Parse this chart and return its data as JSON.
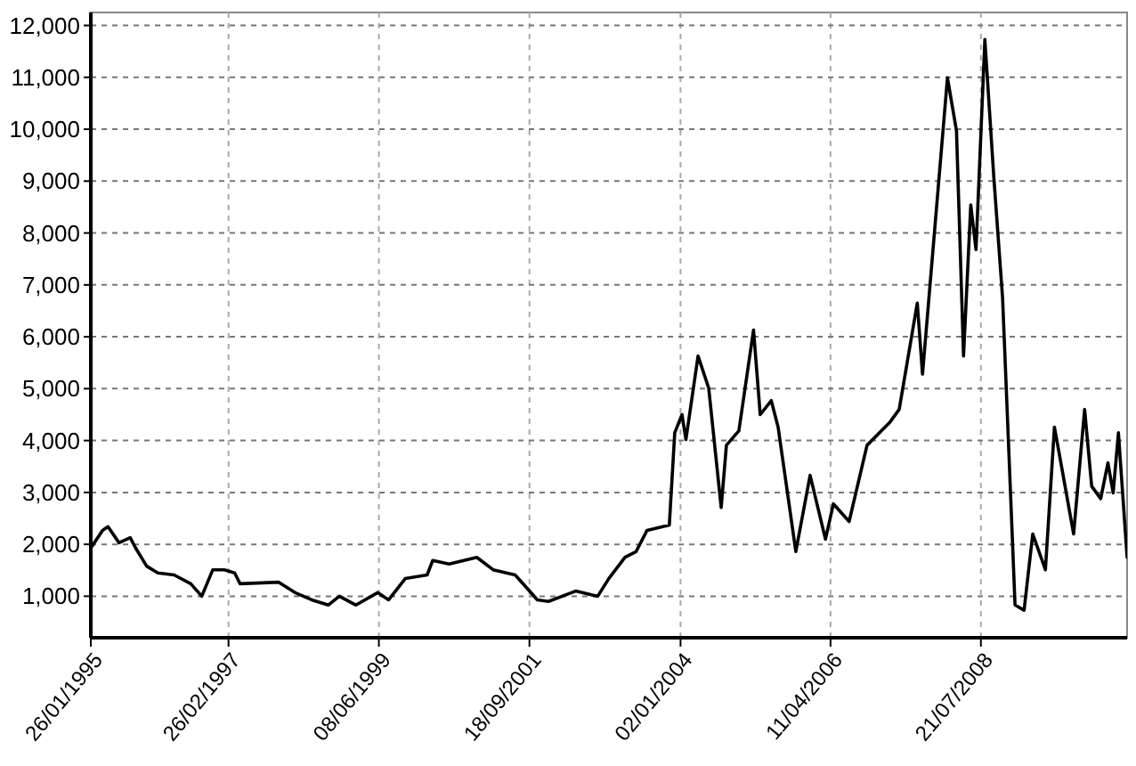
{
  "chart_data": {
    "type": "line",
    "grid": true,
    "marker": "none",
    "line_style": "solid",
    "xlim": [
      "1995-01-26",
      "2010-10-08"
    ],
    "xticks": [
      {
        "value": "1995-01-26",
        "label": "26/01/1995"
      },
      {
        "value": "1997-02-26",
        "label": "26/02/1997"
      },
      {
        "value": "1999-06-08",
        "label": "08/06/1999"
      },
      {
        "value": "2001-09-18",
        "label": "18/09/2001"
      },
      {
        "value": "2004-01-02",
        "label": "02/01/2004"
      },
      {
        "value": "2006-04-11",
        "label": "11/04/2006"
      },
      {
        "value": "2008-07-21",
        "label": "21/07/2008"
      }
    ],
    "ylim": [
      200,
      12250
    ],
    "yticks": [
      {
        "value": 1000,
        "label": "1,000"
      },
      {
        "value": 2000,
        "label": "2,000"
      },
      {
        "value": 3000,
        "label": "3,000"
      },
      {
        "value": 4000,
        "label": "4,000"
      },
      {
        "value": 5000,
        "label": "5,000"
      },
      {
        "value": 6000,
        "label": "6,000"
      },
      {
        "value": 7000,
        "label": "7,000"
      },
      {
        "value": 8000,
        "label": "8,000"
      },
      {
        "value": 9000,
        "label": "9,000"
      },
      {
        "value": 10000,
        "label": "10,000"
      },
      {
        "value": 11000,
        "label": "11,000"
      },
      {
        "value": 12000,
        "label": "12,000"
      }
    ],
    "series": [
      {
        "color": "#000000",
        "x": [
          "1995-02",
          "1995-04",
          "1995-05",
          "1995-07",
          "1995-09",
          "1995-10",
          "1995-12",
          "1996-02",
          "1996-05",
          "1996-08",
          "1996-10",
          "1996-12",
          "1997-02",
          "1997-04",
          "1997-05",
          "1997-12",
          "1998-03",
          "1998-06",
          "1998-09",
          "1998-11",
          "1999-02",
          "1999-06",
          "1999-08",
          "1999-11",
          "2000-03",
          "2000-04",
          "2000-07",
          "2000-12",
          "2001-03",
          "2001-07",
          "2001-09",
          "2001-11",
          "2002-01",
          "2002-06",
          "2002-10",
          "2002-12",
          "2003-03",
          "2003-05",
          "2003-07",
          "2003-11",
          "2003-12-01",
          "2004-01-10",
          "2004-02-01",
          "2004-04-08",
          "2004-06-06",
          "2004-08-14",
          "2004-09-12",
          "2004-11-20",
          "2005-02-09",
          "2005-03-18",
          "2005-05-18",
          "2005-06-25",
          "2005-10-01",
          "2005-12-19",
          "2006-03-14",
          "2006-04-27",
          "2006-07-23",
          "2006-10-30",
          "2007-03-07",
          "2007-04-26",
          "2007-08-04",
          "2007-09-02",
          "2008-01-18",
          "2008-03-08",
          "2008-04-16",
          "2008-05-26",
          "2008-06-24",
          "2008-08-12",
          "2008-10-01",
          "2008-11-18",
          "2008-12-28",
          "2009-01-26",
          "2009-03-17",
          "2009-05-04",
          "2009-07-13",
          "2009-09-01",
          "2009-10-19",
          "2009-12-16",
          "2010-02-15",
          "2010-03-26",
          "2010-05-15",
          "2010-06-24",
          "2010-07-23",
          "2010-08-21",
          "2010-10-08"
        ],
        "values": [
          1960,
          2270,
          2340,
          2030,
          2130,
          1930,
          1580,
          1450,
          1410,
          1240,
          1000,
          1510,
          1510,
          1450,
          1240,
          1270,
          1070,
          930,
          830,
          1000,
          830,
          1070,
          930,
          1340,
          1410,
          1690,
          1620,
          1750,
          1510,
          1410,
          1170,
          930,
          900,
          1100,
          1000,
          1340,
          1750,
          1860,
          2270,
          2370,
          4150,
          4500,
          4020,
          5630,
          5010,
          2710,
          3910,
          4190,
          6130,
          4500,
          4770,
          4260,
          1860,
          3330,
          2100,
          2780,
          2440,
          3910,
          4360,
          4600,
          6650,
          5280,
          10990,
          9970,
          5630,
          8540,
          7680,
          11730,
          9050,
          6750,
          3330,
          830,
          730,
          2200,
          1510,
          4260,
          3330,
          2200,
          4600,
          3120,
          2880,
          3570,
          2990,
          4150,
          1750
        ]
      }
    ]
  }
}
